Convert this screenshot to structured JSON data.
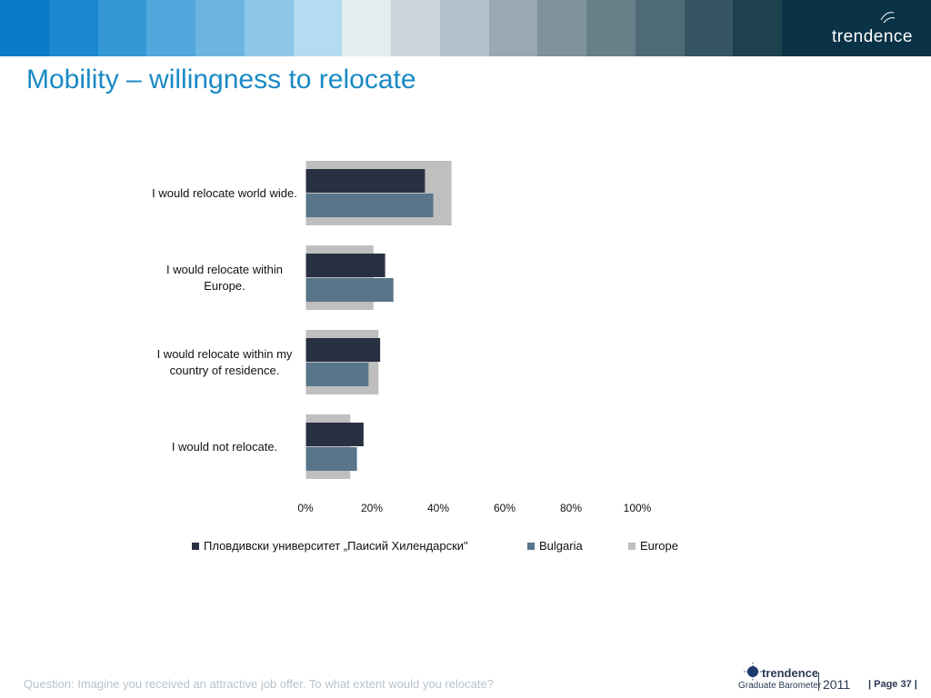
{
  "header": {
    "banner_colors": [
      "#0a7bc9",
      "#1b88cf",
      "#3497d6",
      "#52a7dc",
      "#6cb5e2",
      "#8dc6e9",
      "#b3dbf2",
      "#e4ecf0",
      "#cbd6dc",
      "#b2c1c9",
      "#98a9b2",
      "#7e939c",
      "#667f89",
      "#4e6a76",
      "#365563",
      "#1e4150",
      "#0a3347"
    ],
    "brand": "trendence"
  },
  "title": "Mobility – willingness to relocate",
  "chart_data": {
    "type": "bar",
    "orientation": "horizontal",
    "categories": [
      "I would relocate world wide.",
      "I would relocate within Europe.",
      "I would relocate within my country of residence.",
      "I would not relocate."
    ],
    "category_lines": [
      [
        "I would relocate world wide."
      ],
      [
        "I would relocate within",
        "Europe."
      ],
      [
        "I would relocate within my",
        "country of residence."
      ],
      [
        "I would not relocate."
      ]
    ],
    "series": [
      {
        "name": "Пловдивски университет „Паисий Хилендарски\"",
        "values": [
          36,
          24,
          22.5,
          17.5
        ],
        "color": "#283142"
      },
      {
        "name": "Bulgaria",
        "values": [
          38.5,
          26.5,
          19,
          15.5
        ],
        "color": "#587589"
      },
      {
        "name": "Europe",
        "values": [
          44,
          20.5,
          22,
          13.5
        ],
        "color": "#bfbfbf"
      }
    ],
    "x_ticks": [
      "0%",
      "20%",
      "40%",
      "60%",
      "80%",
      "100%"
    ],
    "xlim": [
      0,
      100
    ],
    "legend_position": "bottom",
    "grid": false
  },
  "footer": {
    "question": "Question: Imagine you received an attractive job offer. To what extent would you relocate?",
    "logo_brand": "trendence",
    "logo_sub": "Graduate Barometer",
    "logo_year": "2011",
    "page": "| Page 37 |"
  }
}
